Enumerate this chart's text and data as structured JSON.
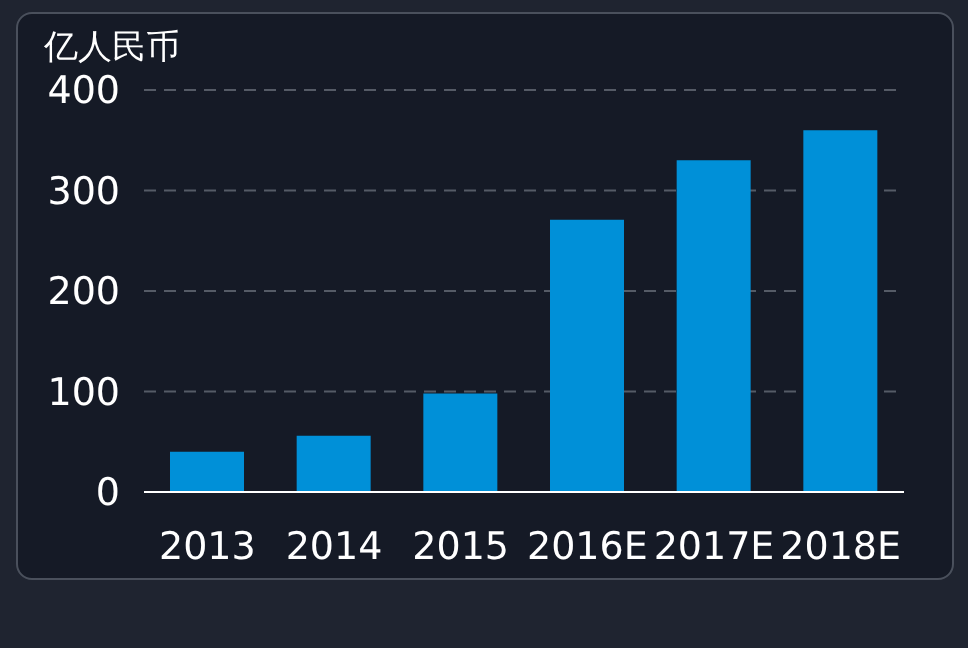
{
  "chart_data": {
    "type": "bar",
    "ylabel": "亿人民币",
    "categories": [
      "2013",
      "2014",
      "2015",
      "2016E",
      "2017E",
      "2018E"
    ],
    "values": [
      40,
      56,
      98,
      271,
      330,
      360
    ],
    "color": "#0090d8",
    "ylim": [
      0,
      400
    ],
    "yticks": [
      0,
      100,
      200,
      300,
      400
    ],
    "grid": "y"
  }
}
